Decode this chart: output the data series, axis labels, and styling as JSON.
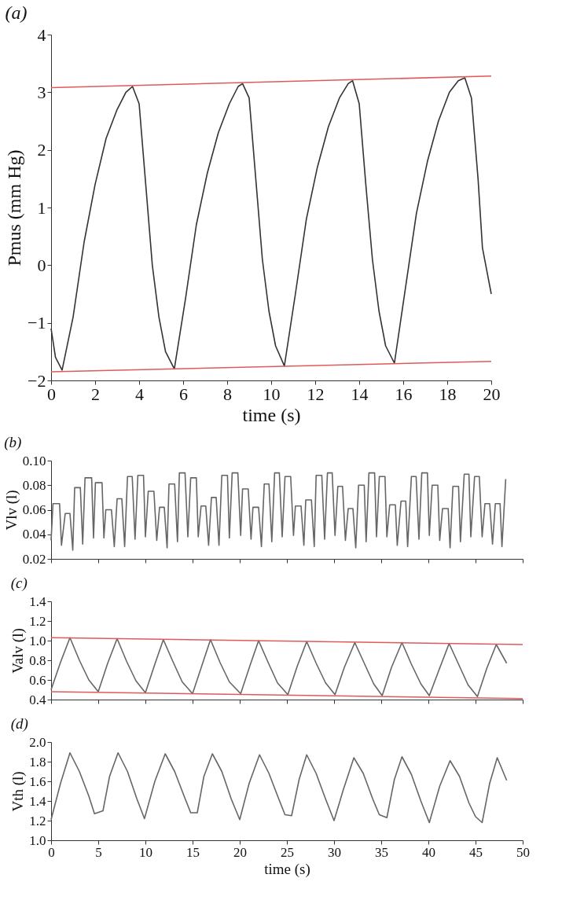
{
  "chart_data": [
    {
      "type": "line",
      "title": "(a)",
      "xlabel": "time (s)",
      "ylabel": "Pmus (mm Hg)",
      "xlim": [
        0,
        20
      ],
      "xticks": [
        0,
        2,
        4,
        6,
        8,
        10,
        12,
        14,
        16,
        18,
        20
      ],
      "ylim": [
        -2,
        4
      ],
      "yticks": [
        {
          "value": -2,
          "label": "−2"
        },
        {
          "value": -1,
          "label": "−1"
        },
        0,
        1,
        2,
        3,
        4
      ],
      "series": [
        {
          "color": "#333333",
          "x": [
            0,
            0.2,
            0.5,
            1.0,
            1.5,
            2.0,
            2.5,
            3.0,
            3.4,
            3.7,
            4.0,
            4.3,
            4.6,
            4.9,
            5.2,
            5.6,
            6.1,
            6.6,
            7.1,
            7.6,
            8.1,
            8.5,
            8.7,
            9.0,
            9.3,
            9.6,
            9.9,
            10.2,
            10.6,
            11.1,
            11.6,
            12.1,
            12.6,
            13.1,
            13.5,
            13.7,
            14.0,
            14.3,
            14.6,
            14.9,
            15.2,
            15.6,
            16.1,
            16.6,
            17.1,
            17.6,
            18.1,
            18.5,
            18.8,
            19.1,
            19.4,
            19.6,
            19.8,
            20.0
          ],
          "values": [
            -1.1,
            -1.6,
            -1.82,
            -0.9,
            0.4,
            1.4,
            2.2,
            2.7,
            3.0,
            3.1,
            2.8,
            1.4,
            0.0,
            -0.9,
            -1.5,
            -1.8,
            -0.6,
            0.7,
            1.6,
            2.3,
            2.8,
            3.1,
            3.15,
            2.9,
            1.5,
            0.1,
            -0.8,
            -1.4,
            -1.75,
            -0.5,
            0.8,
            1.7,
            2.4,
            2.9,
            3.15,
            3.2,
            2.8,
            1.4,
            0.1,
            -0.8,
            -1.4,
            -1.7,
            -0.4,
            0.9,
            1.8,
            2.5,
            3.0,
            3.2,
            3.25,
            2.9,
            1.5,
            0.3,
            -0.1,
            -0.5
          ]
        },
        {
          "type": "line",
          "color": "#e05a5a",
          "x": [
            0,
            20
          ],
          "values": [
            3.08,
            3.28
          ]
        },
        {
          "type": "line",
          "color": "#e05a5a",
          "x": [
            0,
            20
          ],
          "values": [
            -1.85,
            -1.67
          ]
        }
      ]
    },
    {
      "type": "line",
      "title": "(b)",
      "ylabel": "Vlv (l)",
      "tick_labels": "y",
      "xlim": [
        0,
        50
      ],
      "xticks": [
        0,
        5,
        10,
        15,
        20,
        25,
        30,
        35,
        40,
        45,
        50
      ],
      "ylim": [
        0.02,
        0.1
      ],
      "yticks": [
        0.02,
        0.04,
        0.06,
        0.08,
        {
          "value": 0.1,
          "label": "0.10"
        }
      ],
      "series": [
        {
          "color": "#666666",
          "x": [
            0,
            0.2,
            0.9,
            1.1,
            1.5,
            2.0,
            2.3,
            2.5,
            3.1,
            3.35,
            3.6,
            4.3,
            4.5,
            4.7,
            5.4,
            5.6,
            5.8,
            6.4,
            6.7,
            7.0,
            7.5,
            7.8,
            8.1,
            8.6,
            8.9,
            9.2,
            9.8,
            10.0,
            10.3,
            10.9,
            11.2,
            11.5,
            12.0,
            12.3,
            12.5,
            13.1,
            13.4,
            13.6,
            14.2,
            14.5,
            14.8,
            15.4,
            15.6,
            15.9,
            16.4,
            16.7,
            17.0,
            17.5,
            17.8,
            18.1,
            18.7,
            18.9,
            19.2,
            19.8,
            20.1,
            20.3,
            20.9,
            21.2,
            21.4,
            22.0,
            22.3,
            22.6,
            23.1,
            23.4,
            23.7,
            24.2,
            24.5,
            24.8,
            25.4,
            25.7,
            25.9,
            26.5,
            26.8,
            27.0,
            27.6,
            27.9,
            28.1,
            28.7,
            29.0,
            29.3,
            29.8,
            30.1,
            30.4,
            30.9,
            31.2,
            31.5,
            32.0,
            32.3,
            32.6,
            33.2,
            33.4,
            33.7,
            34.3,
            34.5,
            34.8,
            35.4,
            35.6,
            35.9,
            36.5,
            36.7,
            37.1,
            37.6,
            37.8,
            38.2,
            38.7,
            39.0,
            39.3,
            39.9,
            40.1,
            40.4,
            41.0,
            41.2,
            41.5,
            42.1,
            42.3,
            42.6,
            43.2,
            43.4,
            43.8,
            44.3,
            44.5,
            44.9,
            45.4,
            45.7,
            46.0,
            46.5,
            46.8,
            47.1,
            47.6,
            47.8,
            48.2
          ],
          "values": [
            0.035,
            0.065,
            0.065,
            0.031,
            0.057,
            0.057,
            0.027,
            0.078,
            0.078,
            0.032,
            0.086,
            0.086,
            0.037,
            0.082,
            0.082,
            0.037,
            0.06,
            0.06,
            0.03,
            0.069,
            0.069,
            0.03,
            0.087,
            0.087,
            0.036,
            0.088,
            0.088,
            0.038,
            0.075,
            0.075,
            0.035,
            0.062,
            0.062,
            0.029,
            0.081,
            0.081,
            0.034,
            0.09,
            0.09,
            0.038,
            0.086,
            0.086,
            0.038,
            0.063,
            0.063,
            0.031,
            0.07,
            0.07,
            0.031,
            0.088,
            0.088,
            0.037,
            0.09,
            0.09,
            0.039,
            0.077,
            0.077,
            0.036,
            0.062,
            0.062,
            0.03,
            0.081,
            0.081,
            0.034,
            0.09,
            0.09,
            0.038,
            0.087,
            0.087,
            0.039,
            0.063,
            0.063,
            0.031,
            0.068,
            0.068,
            0.03,
            0.088,
            0.088,
            0.036,
            0.09,
            0.09,
            0.039,
            0.079,
            0.079,
            0.035,
            0.061,
            0.061,
            0.029,
            0.08,
            0.08,
            0.034,
            0.09,
            0.09,
            0.038,
            0.087,
            0.087,
            0.038,
            0.064,
            0.064,
            0.031,
            0.067,
            0.067,
            0.03,
            0.087,
            0.087,
            0.036,
            0.09,
            0.09,
            0.039,
            0.08,
            0.08,
            0.035,
            0.061,
            0.061,
            0.029,
            0.079,
            0.079,
            0.034,
            0.089,
            0.089,
            0.038,
            0.087,
            0.087,
            0.038,
            0.065,
            0.065,
            0.032,
            0.065,
            0.065,
            0.03,
            0.085
          ]
        }
      ]
    },
    {
      "type": "line",
      "title": "(c)",
      "ylabel": "Valv (l)",
      "tick_labels": "y",
      "xlim": [
        0,
        50
      ],
      "xticks": [
        0,
        5,
        10,
        15,
        20,
        25,
        30,
        35,
        40,
        45,
        50
      ],
      "ylim": [
        0.4,
        1.4
      ],
      "yticks": [
        0.4,
        0.6,
        0.8,
        {
          "value": 1,
          "label": "1.0"
        },
        1.2,
        1.4
      ],
      "series": [
        {
          "color": "#666666",
          "x": [
            0,
            1.0,
            2.0,
            3.0,
            4.0,
            5.0,
            6.0,
            7.0,
            8.0,
            9.0,
            10.0,
            11.0,
            11.9,
            12.9,
            13.9,
            15.0,
            16.0,
            16.9,
            17.9,
            18.9,
            20.1,
            21.1,
            22.0,
            23.0,
            24.0,
            25.1,
            26.1,
            27.1,
            28.1,
            29.1,
            30.1,
            31.1,
            32.2,
            33.2,
            34.2,
            35.1,
            36.1,
            37.2,
            38.2,
            39.2,
            40.1,
            41.2,
            42.2,
            43.2,
            44.2,
            45.2,
            46.2,
            47.2,
            48.3
          ],
          "values": [
            0.5,
            0.78,
            1.03,
            0.8,
            0.6,
            0.48,
            0.77,
            1.02,
            0.79,
            0.59,
            0.47,
            0.76,
            1.01,
            0.79,
            0.58,
            0.46,
            0.75,
            1.01,
            0.78,
            0.58,
            0.46,
            0.75,
            1.0,
            0.78,
            0.57,
            0.45,
            0.74,
            0.99,
            0.77,
            0.57,
            0.45,
            0.73,
            0.98,
            0.77,
            0.56,
            0.44,
            0.73,
            0.98,
            0.76,
            0.56,
            0.44,
            0.72,
            0.97,
            0.76,
            0.55,
            0.43,
            0.72,
            0.96,
            0.77
          ]
        },
        {
          "type": "line",
          "color": "#e05a5a",
          "x": [
            0,
            50
          ],
          "values": [
            1.03,
            0.96
          ]
        },
        {
          "type": "line",
          "color": "#e05a5a",
          "x": [
            0,
            50
          ],
          "values": [
            0.48,
            0.41
          ]
        }
      ]
    },
    {
      "type": "line",
      "title": "(d)",
      "xlabel": "time (s)",
      "ylabel": "Vth (l)",
      "xlim": [
        0,
        50
      ],
      "xticks": [
        0,
        5,
        10,
        15,
        20,
        25,
        30,
        35,
        40,
        45,
        50
      ],
      "ylim": [
        1.0,
        2.0
      ],
      "yticks": [
        {
          "value": 1,
          "label": "1.0"
        },
        1.2,
        1.4,
        1.6,
        1.8,
        {
          "value": 2,
          "label": "2.0"
        }
      ],
      "series": [
        {
          "color": "#666666",
          "x": [
            0,
            1.0,
            2.0,
            3.0,
            4.0,
            4.6,
            5.5,
            6.2,
            7.1,
            8.1,
            9.1,
            9.9,
            11.0,
            12.1,
            13.1,
            14.1,
            14.8,
            15.5,
            16.2,
            17.1,
            18.1,
            19.1,
            20.0,
            21.0,
            22.1,
            23.1,
            24.1,
            24.8,
            25.5,
            26.3,
            27.1,
            28.1,
            29.1,
            30.0,
            31.0,
            32.1,
            33.1,
            34.1,
            34.8,
            35.6,
            36.4,
            37.2,
            38.2,
            39.2,
            40.1,
            41.2,
            42.3,
            43.3,
            44.3,
            45.0,
            45.7,
            46.5,
            47.3,
            48.3
          ],
          "values": [
            1.21,
            1.58,
            1.89,
            1.7,
            1.45,
            1.27,
            1.3,
            1.65,
            1.89,
            1.7,
            1.42,
            1.22,
            1.6,
            1.88,
            1.7,
            1.45,
            1.28,
            1.28,
            1.65,
            1.88,
            1.7,
            1.42,
            1.21,
            1.58,
            1.87,
            1.68,
            1.43,
            1.26,
            1.25,
            1.62,
            1.87,
            1.68,
            1.42,
            1.2,
            1.52,
            1.84,
            1.68,
            1.42,
            1.26,
            1.23,
            1.62,
            1.85,
            1.67,
            1.4,
            1.18,
            1.55,
            1.81,
            1.65,
            1.38,
            1.24,
            1.18,
            1.58,
            1.84,
            1.61
          ]
        }
      ]
    }
  ]
}
